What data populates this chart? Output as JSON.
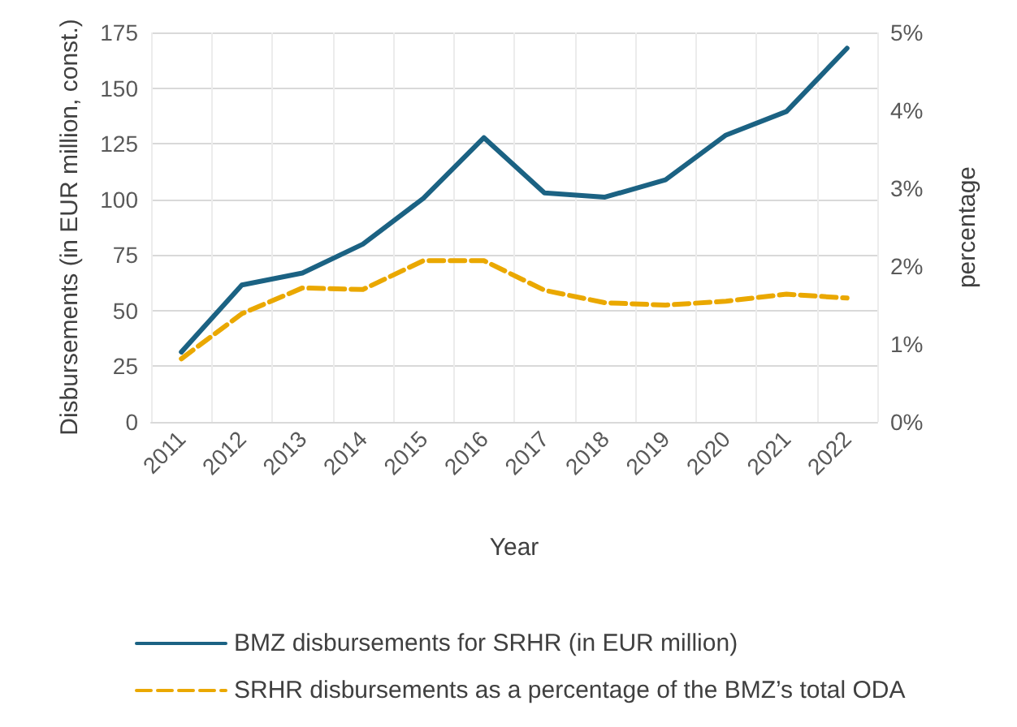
{
  "chart_data": {
    "type": "line",
    "xlabel": "Year",
    "ylabel": "Disbursements (in EUR million, const.)",
    "y2label": "percentage",
    "categories": [
      "2011",
      "2012",
      "2013",
      "2014",
      "2015",
      "2016",
      "2017",
      "2018",
      "2019",
      "2020",
      "2021",
      "2022"
    ],
    "series": [
      {
        "name": "BMZ disbursements for SRHR (in EUR million)",
        "color": "#1b6283",
        "values": [
          31.4,
          61.5,
          66.9,
          79.9,
          100.5,
          127.7,
          102.9,
          101,
          108.8,
          128.9,
          139.5,
          167.9
        ],
        "line_style": "solid"
      },
      {
        "name": "SRHR disbursements as a percentage of the BMZ’s total ODA",
        "color": "#eaa800",
        "axis": "y2",
        "values": [
          0.81,
          1.39,
          1.72,
          1.7,
          2.07,
          2.07,
          1.69,
          1.53,
          1.5,
          1.55,
          1.64,
          1.59
        ],
        "line_style": "dashed"
      }
    ],
    "ylim": [
      0,
      175
    ],
    "yticks": [
      0,
      25,
      50,
      75,
      100,
      125,
      150,
      175
    ],
    "y2lim": [
      0,
      5
    ],
    "y2ticks": [
      {
        "value": 0,
        "label": "0%"
      },
      {
        "value": 1,
        "label": "1%"
      },
      {
        "value": 2,
        "label": "2%"
      },
      {
        "value": 3,
        "label": "3%"
      },
      {
        "value": 4,
        "label": "4%"
      },
      {
        "value": 5,
        "label": "5%"
      }
    ],
    "grid": true,
    "legend": "bottom",
    "marker": "none"
  }
}
